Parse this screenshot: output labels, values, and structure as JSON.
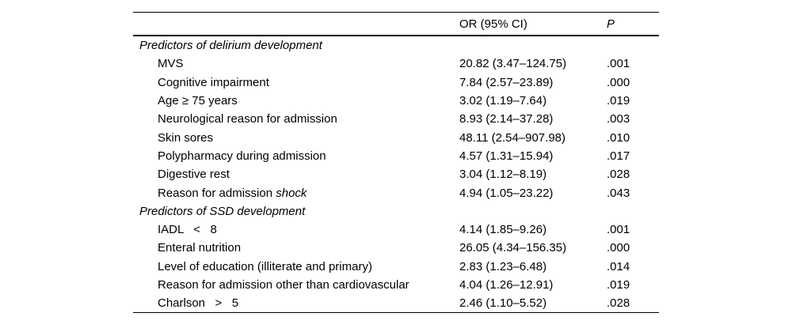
{
  "table": {
    "columns": {
      "or_header": "OR (95% CI)",
      "p_header": "P"
    },
    "rows": [
      {
        "type": "section",
        "label": "Predictors of delirium development"
      },
      {
        "type": "item",
        "label": "MVS",
        "or": "20.82 (3.47–124.75)",
        "p": ".001"
      },
      {
        "type": "item",
        "label": "Cognitive impairment",
        "or": "7.84 (2.57–23.89)",
        "p": ".000"
      },
      {
        "type": "item",
        "label": "Age ≥ 75 years",
        "or": "3.02 (1.19–7.64)",
        "p": ".019"
      },
      {
        "type": "item",
        "label": "Neurological reason for admission",
        "or": "8.93 (2.14–37.28)",
        "p": ".003"
      },
      {
        "type": "item",
        "label": "Skin sores",
        "or": "48.11 (2.54–907.98)",
        "p": ".010"
      },
      {
        "type": "item",
        "label": "Polypharmacy during admission",
        "or": "4.57 (1.31–15.94)",
        "p": ".017"
      },
      {
        "type": "item",
        "label": "Digestive rest",
        "or": "3.04 (1.12–8.19)",
        "p": ".028"
      },
      {
        "type": "item",
        "label": "Reason for admission ",
        "label_italic": "shock",
        "or": "4.94 (1.05–23.22)",
        "p": ".043"
      },
      {
        "type": "section",
        "label": "Predictors of SSD development"
      },
      {
        "type": "item",
        "label": "IADL   <   8",
        "or": "4.14 (1.85–9.26)",
        "p": ".001"
      },
      {
        "type": "item",
        "label": "Enteral nutrition",
        "or": "26.05 (4.34–156.35)",
        "p": ".000"
      },
      {
        "type": "item",
        "label": "Level of education (illiterate and primary)",
        "or": "2.83 (1.23–6.48)",
        "p": ".014"
      },
      {
        "type": "item",
        "label": "Reason for admission other than cardiovascular",
        "or": "4.04 (1.26–12.91)",
        "p": ".019"
      },
      {
        "type": "item",
        "label": "Charlson   >   5",
        "or": "2.46 (1.10–5.52)",
        "p": ".028"
      }
    ]
  },
  "colors": {
    "text": "#000000",
    "rule": "#000000",
    "background": "#ffffff"
  }
}
